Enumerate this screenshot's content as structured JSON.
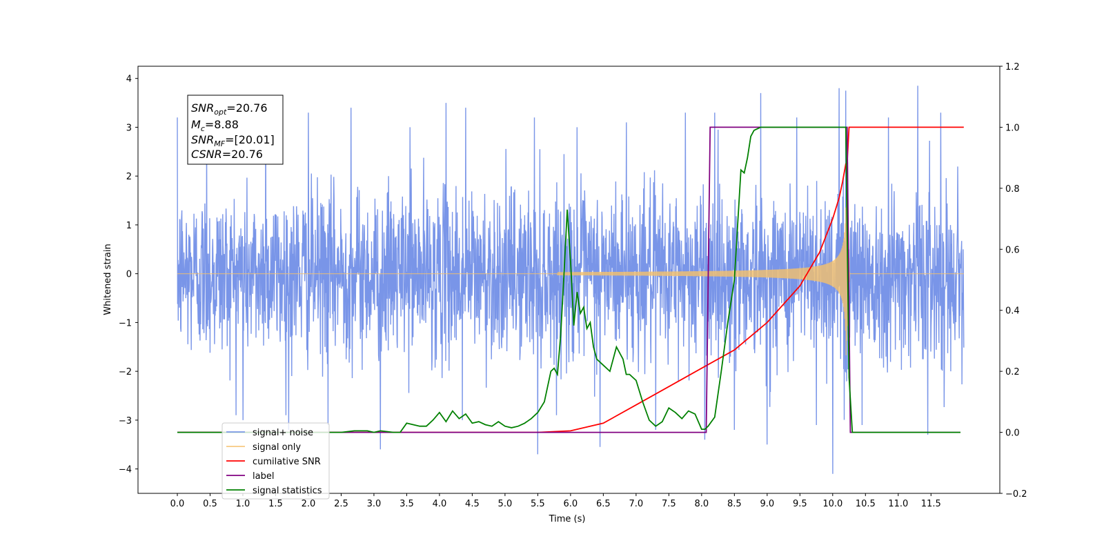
{
  "chart_data": {
    "type": "line",
    "xlabel": "Time (s)",
    "ylabel": "Whitened strain",
    "xlim": [
      -0.6,
      12.55
    ],
    "ylim": [
      -4.5,
      4.25
    ],
    "y2lim": [
      -0.2,
      1.2
    ],
    "xticks": [
      "0.0",
      "0.5",
      "1.0",
      "1.5",
      "2.0",
      "2.5",
      "3.0",
      "3.5",
      "4.0",
      "4.5",
      "5.0",
      "5.5",
      "6.0",
      "6.5",
      "7.0",
      "7.5",
      "8.0",
      "8.5",
      "9.0",
      "9.5",
      "10.0",
      "10.5",
      "11.0",
      "11.5"
    ],
    "yticks": [
      "4",
      "3",
      "2",
      "1",
      "0",
      "−1",
      "−2",
      "−3",
      "−4"
    ],
    "y2ticks": [
      "1.2",
      "1.0",
      "0.8",
      "0.6",
      "0.4",
      "0.2",
      "0.0",
      "−0.2"
    ],
    "grid": false,
    "legend_position": "lower-left",
    "series": [
      {
        "name": "signal+ noise",
        "axis": "left",
        "color": "#6a8ae6",
        "x_range": [
          0.0,
          12.0
        ],
        "noise_rms": 0.85,
        "spikes": [
          [
            0.0,
            3.2
          ],
          [
            0.45,
            2.9
          ],
          [
            1.0,
            -3.0
          ],
          [
            1.35,
            3.4
          ],
          [
            1.7,
            -3.2
          ],
          [
            2.0,
            3.3
          ],
          [
            2.3,
            -3.1
          ],
          [
            2.65,
            3.4
          ],
          [
            3.1,
            -3.6
          ],
          [
            3.55,
            3.0
          ],
          [
            4.1,
            3.5
          ],
          [
            4.35,
            -3.0
          ],
          [
            4.4,
            3.4
          ],
          [
            5.5,
            -3.7
          ],
          [
            5.45,
            3.2
          ],
          [
            6.1,
            3.0
          ],
          [
            6.45,
            -3.55
          ],
          [
            6.85,
            3.1
          ],
          [
            7.3,
            -3.2
          ],
          [
            7.75,
            3.3
          ],
          [
            8.05,
            -3.4
          ],
          [
            8.2,
            3.3
          ],
          [
            8.5,
            -3.2
          ],
          [
            8.9,
            3.7
          ],
          [
            9.0,
            -3.5
          ],
          [
            9.45,
            3.2
          ],
          [
            9.75,
            -3.1
          ],
          [
            10.0,
            -4.1
          ],
          [
            10.1,
            3.8
          ],
          [
            10.2,
            3.75
          ],
          [
            10.45,
            -3.1
          ],
          [
            10.85,
            3.2
          ],
          [
            11.3,
            3.85
          ],
          [
            11.45,
            -3.3
          ],
          [
            11.65,
            3.3
          ],
          [
            11.8,
            -2.0
          ]
        ]
      },
      {
        "name": "signal only",
        "axis": "left",
        "color": "#f5c06a",
        "chirp_start": 5.8,
        "merger": 10.2,
        "peak_amplitude": 1.8
      },
      {
        "name": "cumilative SNR",
        "axis": "right",
        "color": "#ff0000",
        "x": [
          0,
          5.0,
          5.5,
          6.0,
          6.5,
          7.0,
          7.5,
          8.0,
          8.5,
          9.0,
          9.5,
          9.8,
          10.0,
          10.1,
          10.15,
          10.2,
          10.22,
          10.25,
          12.0
        ],
        "y": [
          0,
          0,
          0.0,
          0.005,
          0.03,
          0.09,
          0.15,
          0.21,
          0.27,
          0.36,
          0.48,
          0.59,
          0.7,
          0.77,
          0.82,
          0.88,
          0.88,
          1.0,
          1.0
        ]
      },
      {
        "name": "label",
        "axis": "right",
        "color": "#800080",
        "x": [
          0,
          8.07,
          8.13,
          10.22,
          10.27,
          11.95
        ],
        "y": [
          0,
          0,
          1,
          1,
          0,
          0
        ]
      },
      {
        "name": "signal statistics",
        "axis": "right",
        "color": "#008000",
        "x": [
          0,
          2.5,
          2.7,
          2.9,
          3.0,
          3.1,
          3.3,
          3.4,
          3.5,
          3.6,
          3.7,
          3.8,
          3.9,
          4.0,
          4.1,
          4.2,
          4.3,
          4.4,
          4.5,
          4.6,
          4.7,
          4.8,
          4.9,
          5.0,
          5.1,
          5.2,
          5.3,
          5.4,
          5.5,
          5.6,
          5.7,
          5.75,
          5.8,
          5.85,
          5.9,
          5.95,
          6.0,
          6.05,
          6.1,
          6.15,
          6.2,
          6.25,
          6.3,
          6.35,
          6.4,
          6.5,
          6.6,
          6.7,
          6.8,
          6.85,
          6.9,
          7.0,
          7.1,
          7.2,
          7.3,
          7.4,
          7.5,
          7.6,
          7.7,
          7.8,
          7.9,
          8.0,
          8.05,
          8.1,
          8.2,
          8.3,
          8.4,
          8.5,
          8.6,
          8.65,
          8.7,
          8.75,
          8.8,
          8.9,
          9.0,
          10.2,
          10.25,
          10.3,
          11.95
        ],
        "y": [
          0,
          0,
          0.005,
          0.005,
          0.0,
          0.005,
          0.0,
          0.0,
          0.03,
          0.025,
          0.02,
          0.02,
          0.04,
          0.065,
          0.035,
          0.07,
          0.045,
          0.06,
          0.03,
          0.035,
          0.025,
          0.02,
          0.035,
          0.02,
          0.015,
          0.02,
          0.03,
          0.045,
          0.065,
          0.1,
          0.2,
          0.21,
          0.19,
          0.32,
          0.52,
          0.73,
          0.56,
          0.35,
          0.46,
          0.39,
          0.41,
          0.34,
          0.36,
          0.28,
          0.24,
          0.22,
          0.2,
          0.28,
          0.24,
          0.19,
          0.19,
          0.17,
          0.1,
          0.04,
          0.02,
          0.035,
          0.08,
          0.065,
          0.045,
          0.07,
          0.06,
          0.01,
          0.01,
          0.02,
          0.05,
          0.2,
          0.36,
          0.5,
          0.86,
          0.85,
          0.9,
          0.97,
          0.99,
          1.0,
          1.0,
          1.0,
          0.18,
          0.0,
          0.0
        ]
      }
    ]
  },
  "annotation": {
    "snr_opt_base": "SNR",
    "snr_opt_sub": "opt",
    "snr_opt_val": "=20.76",
    "mc_base": "M",
    "mc_sub": "c",
    "mc_val": "=8.88",
    "snr_mf_base": "SNR",
    "snr_mf_sub": "MF",
    "snr_mf_val": "=[20.01]",
    "csnr_base": "CSNR",
    "csnr_val": "=20.76"
  },
  "legend": {
    "items": [
      {
        "label": "signal+ noise",
        "color": "#6a8ae6"
      },
      {
        "label": "signal only",
        "color": "#f5c06a"
      },
      {
        "label": "cumilative SNR",
        "color": "#ff0000"
      },
      {
        "label": "label",
        "color": "#800080"
      },
      {
        "label": "signal statistics",
        "color": "#008000"
      }
    ]
  }
}
